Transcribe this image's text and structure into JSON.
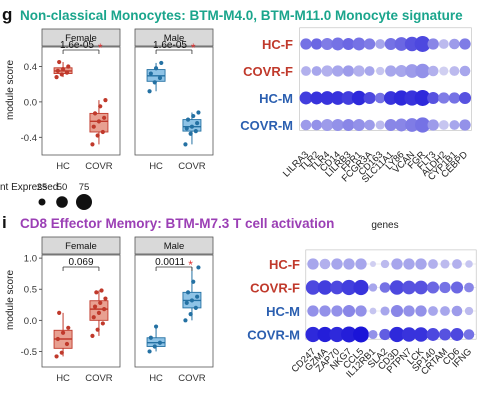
{
  "colors": {
    "title_g": "#1aa58c",
    "title_i": "#9b3fb5",
    "female_box": "#e8a091",
    "female_point": "#c0392b",
    "male_box": "#8ec3e6",
    "male_point": "#2471a3",
    "hc_label": "#c0392b",
    "covr_label": "#c0392b",
    "hcm_label": "#2b5fb0",
    "covrm_label": "#2b5fb0",
    "dot_low": "#e4e4f4",
    "dot_high": "#1a14d8"
  },
  "panel_g": {
    "letter": "g",
    "title": "Non-classical Monocytes: BTM-M4.0, BTM-M11.0 Monocyte signature",
    "ylabel": "module score",
    "yticks": [
      "0.4",
      "0.0",
      "-0.4"
    ],
    "xcats": [
      "HC",
      "COVR"
    ],
    "female": {
      "strip": "Female",
      "pval": "1.6e-05",
      "star": "*"
    },
    "male": {
      "strip": "Male",
      "pval": "1.6e-05",
      "star": "*"
    },
    "dot_rows": [
      "HC-F",
      "COVR-F",
      "HC-M",
      "COVR-M"
    ],
    "genes": [
      "LILRA3",
      "TLR2",
      "TLR4",
      "CD14",
      "LILRB3",
      "FPR1",
      "FCGR3A",
      "CD163",
      "SLC11A1",
      "LY86",
      "VCAN",
      "FGR",
      "FLT3",
      "ALDH2",
      "CYP1B1",
      "CEBPD"
    ],
    "xlabel": "genes"
  },
  "legend": {
    "title": "nt Expressed",
    "labels": [
      "25",
      "50",
      "75"
    ]
  },
  "panel_i": {
    "letter": "i",
    "title": "CD8 Effector Memory: BTM-M7.3 T cell activation",
    "ylabel": "module score",
    "yticks": [
      "1.0",
      "0.5",
      "0.0",
      "-0.5"
    ],
    "xcats": [
      "HC",
      "COVR"
    ],
    "female": {
      "strip": "Female",
      "pval": "0.069",
      "star": ""
    },
    "male": {
      "strip": "Male",
      "pval": "0.0011",
      "star": "*"
    },
    "dot_rows": [
      "HC-F",
      "COVR-F",
      "HC-M",
      "COVR-M"
    ],
    "genes": [
      "CD247",
      "GZMA",
      "ZAP70",
      "NKG7",
      "CCL5",
      "IL12RB1",
      "SLA2",
      "CD3D",
      "PTPN7",
      "LCK",
      "SP140",
      "CRTAM",
      "CD6",
      "IFNG"
    ]
  },
  "chart_data": [
    {
      "type": "box",
      "title": "Female",
      "ylabel": "module score",
      "ylim": [
        -0.6,
        0.62
      ],
      "categories": [
        "HC",
        "COVR"
      ],
      "series": [
        {
          "values": [
            0.28,
            0.31,
            0.33,
            0.35,
            0.37,
            0.4,
            0.45
          ]
        },
        {
          "values": [
            -0.48,
            -0.38,
            -0.34,
            -0.28,
            -0.22,
            -0.18,
            -0.13,
            -0.05,
            0.02
          ]
        }
      ],
      "annotation": "1.6e-05 *"
    },
    {
      "type": "box",
      "title": "Male",
      "ylabel": "module score",
      "ylim": [
        -0.6,
        0.62
      ],
      "categories": [
        "HC",
        "COVR"
      ],
      "series": [
        {
          "values": [
            0.12,
            0.22,
            0.27,
            0.32,
            0.38,
            0.44
          ]
        },
        {
          "values": [
            -0.48,
            -0.36,
            -0.33,
            -0.3,
            -0.28,
            -0.24,
            -0.2,
            -0.16,
            -0.12
          ]
        }
      ],
      "annotation": "1.6e-05 *"
    },
    {
      "type": "dotplot",
      "xlabel": "genes",
      "rows": [
        "HC-F",
        "COVR-F",
        "HC-M",
        "COVR-M"
      ],
      "columns": [
        "LILRA3",
        "TLR2",
        "TLR4",
        "CD14",
        "LILRB3",
        "FPR1",
        "FCGR3A",
        "CD163",
        "SLC11A1",
        "LY86",
        "VCAN",
        "FGR",
        "FLT3",
        "ALDH2",
        "CYP1B1",
        "CEBPD"
      ],
      "size": [
        [
          55,
          55,
          60,
          65,
          60,
          65,
          55,
          45,
          60,
          70,
          75,
          85,
          55,
          45,
          50,
          55
        ],
        [
          45,
          45,
          55,
          55,
          55,
          55,
          45,
          35,
          55,
          60,
          70,
          75,
          50,
          40,
          45,
          50
        ],
        [
          65,
          65,
          70,
          70,
          70,
          75,
          60,
          50,
          70,
          80,
          80,
          85,
          60,
          55,
          55,
          60
        ],
        [
          50,
          50,
          60,
          60,
          60,
          60,
          50,
          40,
          60,
          65,
          70,
          80,
          55,
          45,
          45,
          55
        ]
      ],
      "intensity": [
        [
          0.55,
          0.6,
          0.5,
          0.55,
          0.6,
          0.55,
          0.5,
          0.3,
          0.55,
          0.6,
          0.7,
          0.75,
          0.45,
          0.2,
          0.35,
          0.5
        ],
        [
          0.25,
          0.3,
          0.25,
          0.3,
          0.35,
          0.25,
          0.3,
          0.15,
          0.3,
          0.3,
          0.35,
          0.4,
          0.25,
          0.1,
          0.2,
          0.3
        ],
        [
          0.8,
          0.85,
          0.85,
          0.85,
          0.8,
          0.9,
          0.75,
          0.55,
          0.85,
          0.9,
          0.85,
          0.9,
          0.7,
          0.5,
          0.55,
          0.7
        ],
        [
          0.35,
          0.4,
          0.35,
          0.4,
          0.45,
          0.4,
          0.35,
          0.2,
          0.45,
          0.45,
          0.5,
          0.55,
          0.35,
          0.15,
          0.3,
          0.4
        ]
      ]
    },
    {
      "type": "box",
      "title": "Female",
      "ylabel": "module score",
      "ylim": [
        -0.75,
        1.05
      ],
      "categories": [
        "HC",
        "COVR"
      ],
      "series": [
        {
          "values": [
            -0.58,
            -0.52,
            -0.38,
            -0.3,
            -0.2,
            -0.12,
            0.12
          ]
        },
        {
          "values": [
            -0.25,
            -0.15,
            -0.05,
            0.05,
            0.12,
            0.18,
            0.22,
            0.28,
            0.35,
            0.45,
            0.48
          ]
        }
      ],
      "annotation": "0.069"
    },
    {
      "type": "box",
      "title": "Male",
      "ylabel": "module score",
      "ylim": [
        -0.75,
        1.05
      ],
      "categories": [
        "HC",
        "COVR"
      ],
      "series": [
        {
          "values": [
            -0.5,
            -0.42,
            -0.36,
            -0.28,
            -0.1
          ]
        },
        {
          "values": [
            0.0,
            0.1,
            0.2,
            0.28,
            0.32,
            0.38,
            0.45,
            0.62,
            0.85
          ]
        }
      ],
      "annotation": "0.0011 *"
    },
    {
      "type": "dotplot",
      "rows": [
        "HC-F",
        "COVR-F",
        "HC-M",
        "COVR-M"
      ],
      "columns": [
        "CD247",
        "GZMA",
        "ZAP70",
        "NKG7",
        "CCL5",
        "IL12RB1",
        "SLA2",
        "CD3D",
        "PTPN7",
        "LCK",
        "SP140",
        "CRTAM",
        "CD6",
        "IFNG"
      ],
      "size": [
        [
          55,
          50,
          55,
          55,
          55,
          20,
          35,
          55,
          55,
          55,
          45,
          40,
          45,
          30
        ],
        [
          75,
          75,
          70,
          80,
          80,
          35,
          50,
          75,
          70,
          70,
          60,
          55,
          60,
          45
        ],
        [
          55,
          55,
          55,
          60,
          55,
          25,
          40,
          60,
          55,
          55,
          45,
          45,
          50,
          35
        ],
        [
          80,
          80,
          80,
          85,
          85,
          40,
          55,
          80,
          75,
          75,
          65,
          60,
          65,
          50
        ]
      ],
      "intensity": [
        [
          0.3,
          0.25,
          0.3,
          0.3,
          0.3,
          0.1,
          0.2,
          0.3,
          0.3,
          0.3,
          0.25,
          0.2,
          0.25,
          0.15
        ],
        [
          0.75,
          0.8,
          0.75,
          0.8,
          0.85,
          0.3,
          0.55,
          0.75,
          0.7,
          0.7,
          0.6,
          0.55,
          0.6,
          0.45
        ],
        [
          0.4,
          0.4,
          0.4,
          0.45,
          0.4,
          0.15,
          0.3,
          0.45,
          0.4,
          0.4,
          0.3,
          0.3,
          0.35,
          0.2
        ],
        [
          0.9,
          0.95,
          0.9,
          0.95,
          1.0,
          0.4,
          0.65,
          0.9,
          0.85,
          0.85,
          0.75,
          0.7,
          0.75,
          0.55
        ]
      ]
    }
  ]
}
